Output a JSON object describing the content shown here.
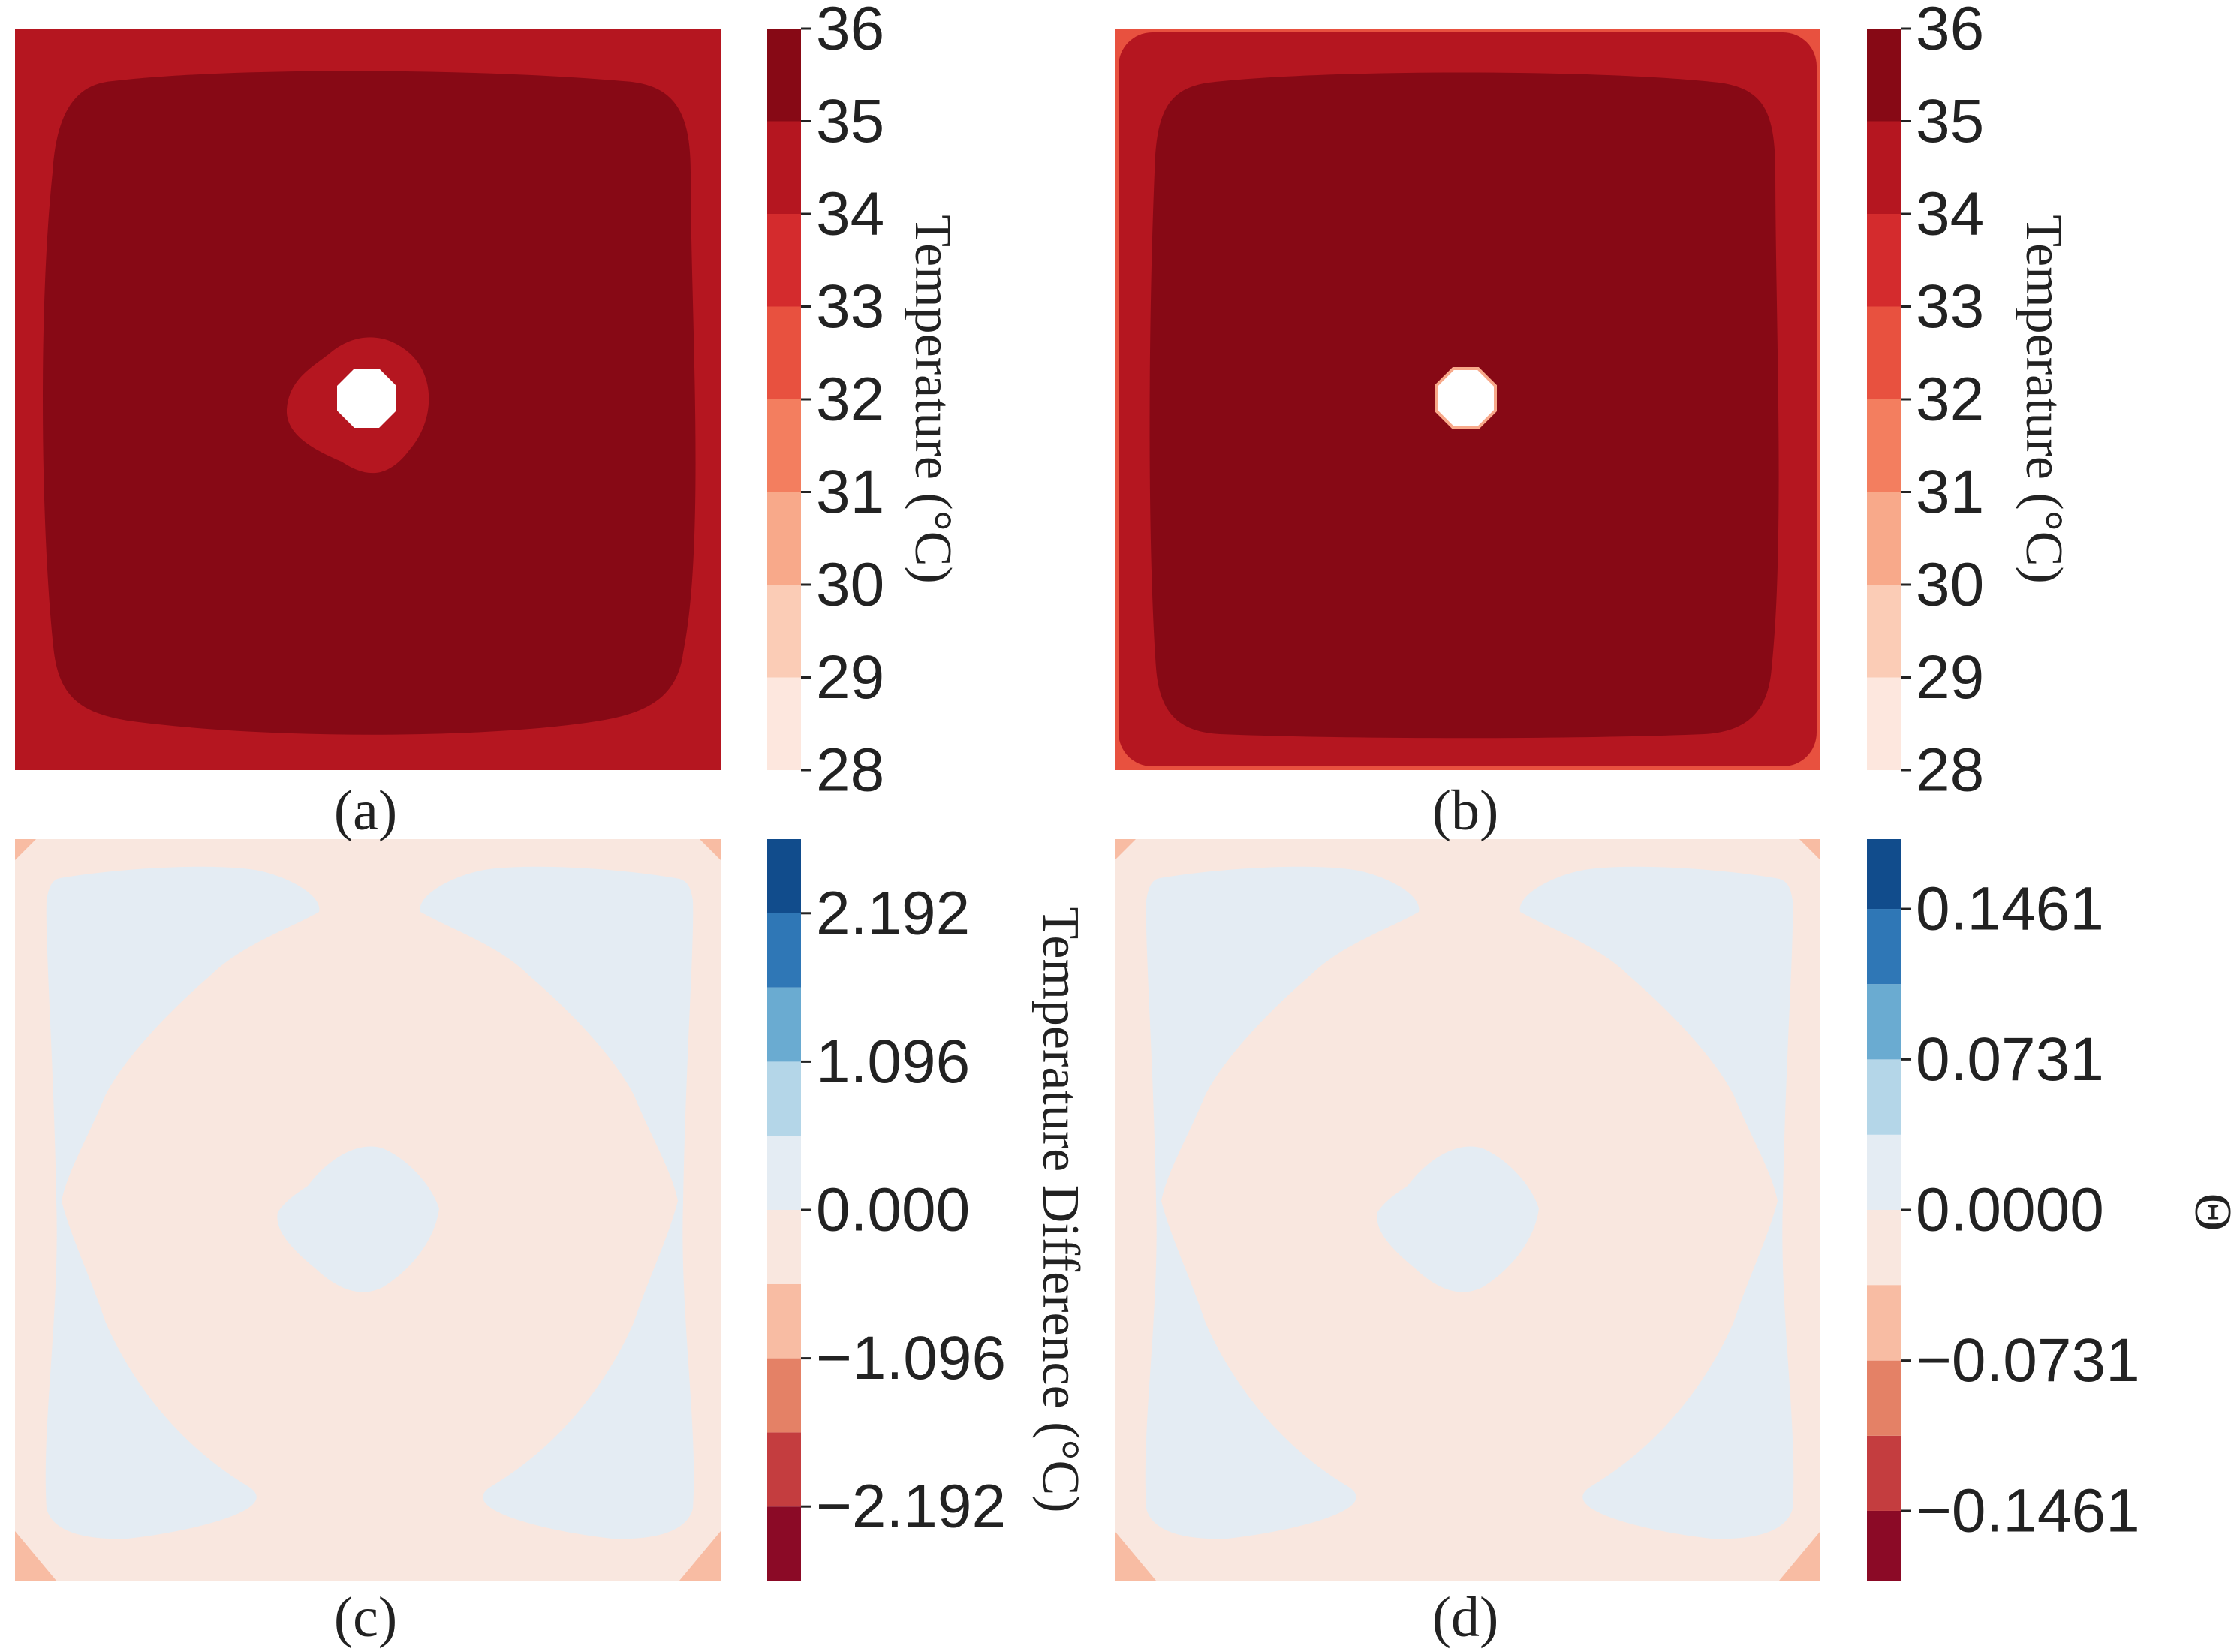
{
  "chart_data": [
    {
      "panel": "a",
      "type": "heatmap",
      "caption": "(a)",
      "colorbar_label": "Temperature (°C)",
      "colormap": "RdBu_r",
      "levels": [
        28,
        29,
        30,
        31,
        32,
        33,
        34,
        35,
        36
      ],
      "tick_labels": [
        "28",
        "29",
        "30",
        "31",
        "32",
        "33",
        "34",
        "35",
        "36"
      ],
      "level_colors": [
        "#fde7de",
        "#fbccb6",
        "#f8a98a",
        "#f37e5f",
        "#e8513f",
        "#d42b2d",
        "#b51620",
        "#870915"
      ]
    },
    {
      "panel": "b",
      "type": "heatmap",
      "caption": "(b)",
      "colorbar_label": "Temperature (°C)",
      "colormap": "RdBu_r",
      "levels": [
        28,
        29,
        30,
        31,
        32,
        33,
        34,
        35,
        36
      ],
      "tick_labels": [
        "28",
        "29",
        "30",
        "31",
        "32",
        "33",
        "34",
        "35",
        "36"
      ],
      "level_colors": [
        "#fde7de",
        "#fbccb6",
        "#f8a98a",
        "#f37e5f",
        "#e8513f",
        "#d42b2d",
        "#b51620",
        "#870915"
      ]
    },
    {
      "panel": "c",
      "type": "heatmap",
      "caption": "(c)",
      "colorbar_label": "Temperature Difference (°C)",
      "colormap": "RdBu",
      "levels": [
        -2.74,
        -2.192,
        -1.644,
        -1.096,
        -0.548,
        0.0,
        0.548,
        1.096,
        1.644,
        2.192,
        2.74
      ],
      "ticks": [
        -2.192,
        -1.096,
        0.0,
        1.096,
        2.192
      ],
      "tick_labels": [
        "−2.192",
        "−1.096",
        "0.000",
        "1.096",
        "2.192"
      ]
    },
    {
      "panel": "d",
      "type": "heatmap",
      "caption": "(d)",
      "colorbar_label": "Θ",
      "colormap": "RdBu",
      "levels": [
        -0.18,
        -0.1461,
        -0.1096,
        -0.0731,
        -0.0365,
        0.0,
        0.0365,
        0.0731,
        0.1096,
        0.1461,
        0.18
      ],
      "ticks": [
        -0.1461,
        -0.0731,
        0.0,
        0.0731,
        0.1461
      ],
      "tick_labels": [
        "−0.1461",
        "−0.0731",
        "0.0000",
        "0.0731",
        "0.1461"
      ]
    }
  ],
  "diff_level_colors": [
    "#8b0a26",
    "#c43d3f",
    "#e48166",
    "#f8bca3",
    "#f9e7df",
    "#e4ecf3",
    "#b4d6e8",
    "#6aabd1",
    "#2f77b6",
    "#114c8c"
  ],
  "field_colors": {
    "temp_edge": "#b51620",
    "temp_core": "#870915",
    "temp_hole_ring": "#b51620",
    "temp_corner": "#e8513f",
    "diff_background": "#f9e7df",
    "diff_lobes": "#e4ecf3",
    "diff_corner": "#f8bca3"
  }
}
